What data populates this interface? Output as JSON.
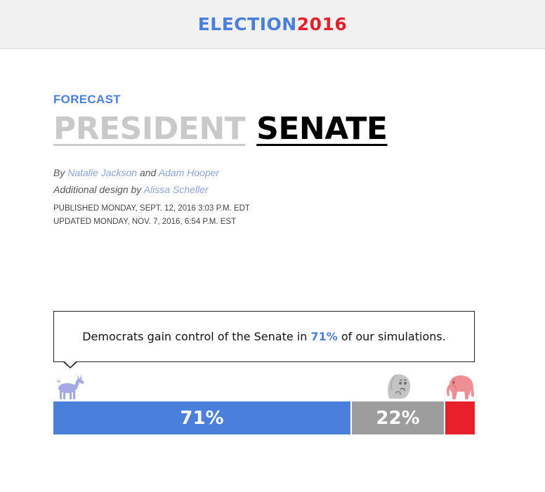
{
  "header": {
    "logo_part1": "ELECTION",
    "logo_part2": "2016"
  },
  "article": {
    "kicker": "FORECAST",
    "tabs": [
      {
        "label": "PRESIDENT",
        "active": false
      },
      {
        "label": "SENATE",
        "active": true
      }
    ],
    "byline": {
      "by": "By",
      "author1": "Natalie Jackson",
      "and": "and",
      "author2": "Adam Hooper",
      "design_prefix": "Additional design by",
      "designer": "Alissa Scheller"
    },
    "published": "PUBLISHED MONDAY, SEPT. 12, 2016 3:03 P.M. EDT",
    "updated": "UPDATED MONDAY, NOV. 7, 2016, 6:54 P.M. EST"
  },
  "forecast": {
    "callout_before": "Democrats gain control of the Senate in",
    "callout_pct": "71%",
    "callout_after": "of our simulations.",
    "segments": [
      {
        "name": "dem",
        "value": 71,
        "label": "71%",
        "color": "#4a7fdc"
      },
      {
        "name": "tossup",
        "value": 22,
        "label": "22%",
        "color": "#9d9d9d"
      },
      {
        "name": "rep",
        "value": 7,
        "label": "",
        "color": "#e8202b"
      }
    ],
    "icons": [
      "donkey-icon",
      "tossup-icon",
      "elephant-icon"
    ]
  }
}
